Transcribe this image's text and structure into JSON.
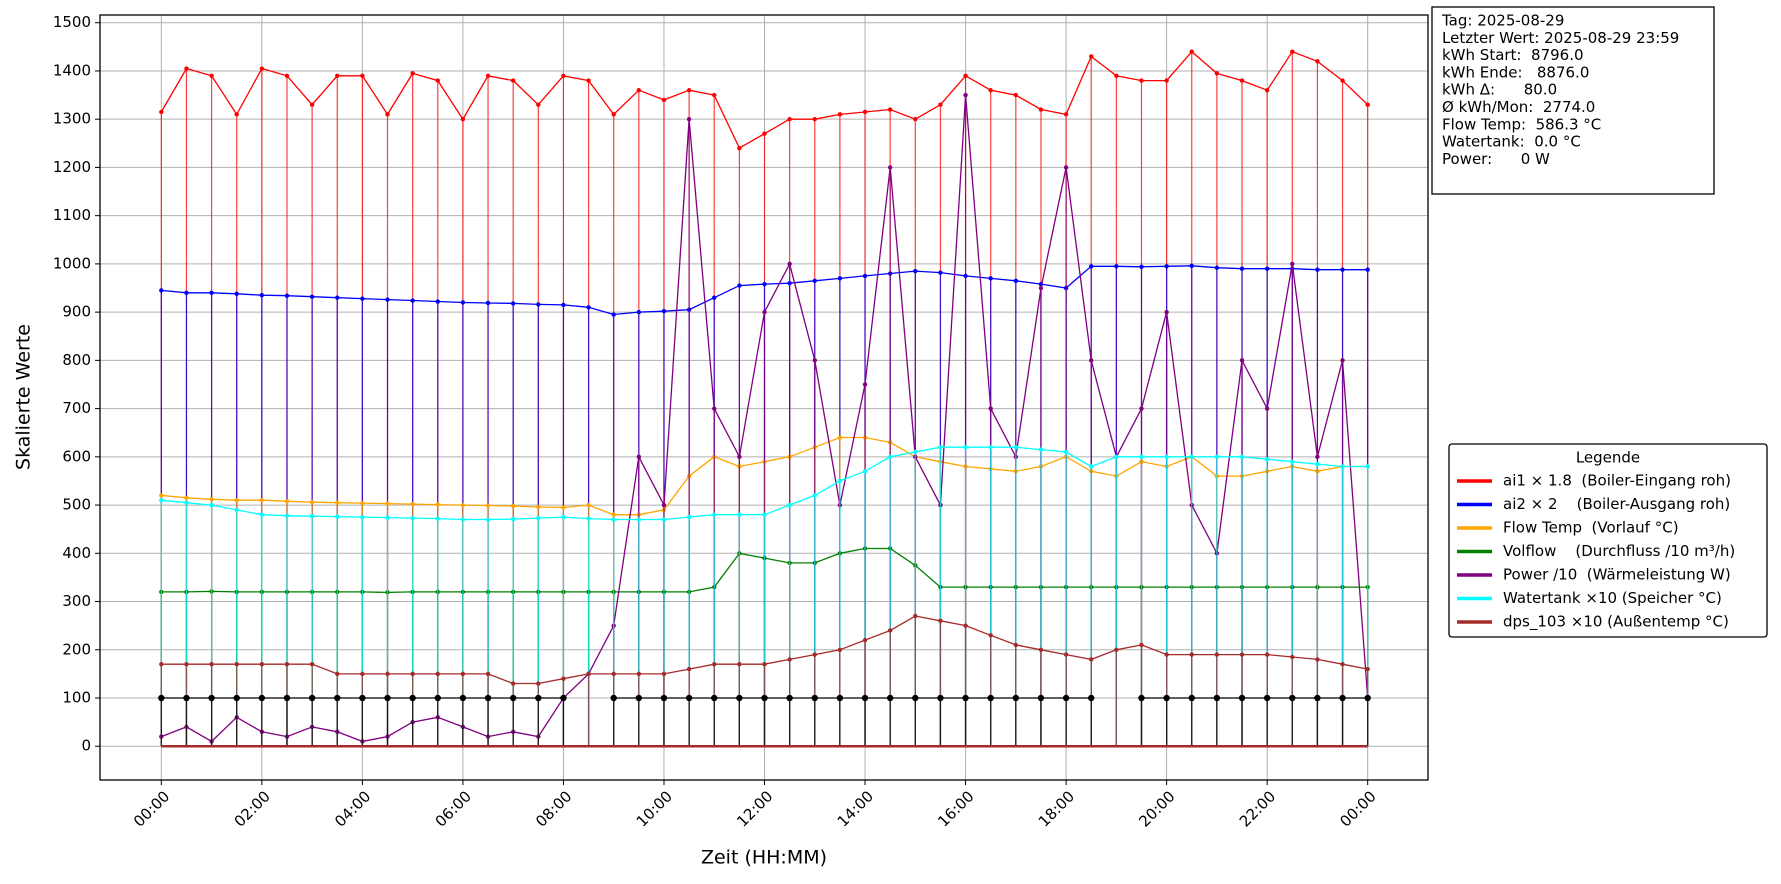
{
  "chart_data": {
    "type": "stem-line",
    "ylabel": "Skalierte Werte",
    "xlabel": "Zeit (HH:MM)",
    "xlim": [
      -1.22,
      25.2
    ],
    "ylim": [
      -70,
      1516
    ],
    "yticks": [
      0,
      100,
      200,
      300,
      400,
      500,
      600,
      700,
      800,
      900,
      1000,
      1100,
      1200,
      1300,
      1400,
      1500
    ],
    "xticks": [
      {
        "value": 0,
        "label": "00:00"
      },
      {
        "value": 2,
        "label": "02:00"
      },
      {
        "value": 4,
        "label": "04:00"
      },
      {
        "value": 6,
        "label": "06:00"
      },
      {
        "value": 8,
        "label": "08:00"
      },
      {
        "value": 10,
        "label": "10:00"
      },
      {
        "value": 12,
        "label": "12:00"
      },
      {
        "value": 14,
        "label": "14:00"
      },
      {
        "value": 16,
        "label": "16:00"
      },
      {
        "value": 18,
        "label": "18:00"
      },
      {
        "value": 20,
        "label": "20:00"
      },
      {
        "value": 22,
        "label": "22:00"
      },
      {
        "value": 24,
        "label": "00:00"
      }
    ],
    "grid": true,
    "legend_title": "Legende",
    "legend_position": "right",
    "annotations": [
      "Tag: 2025-08-29",
      "Letzter Wert: 2025-08-29 23:59",
      "kWh Start:  8796.0",
      "kWh Ende:   8876.0",
      "kWh Δ:      80.0",
      "Ø kWh/Mon:  2774.0",
      "Flow Temp:  586.3 °C",
      "Watertank:  0.0 °C",
      "Power:      0 W"
    ],
    "x": [
      0,
      0.5,
      1,
      1.5,
      2,
      2.5,
      3,
      3.5,
      4,
      4.5,
      5,
      5.5,
      6,
      6.5,
      7,
      7.5,
      8,
      8.5,
      9,
      9.5,
      10,
      10.5,
      11,
      11.5,
      12,
      12.5,
      13,
      13.5,
      14,
      14.5,
      15,
      15.5,
      16,
      16.5,
      17,
      17.5,
      18,
      18.5,
      19,
      19.5,
      20,
      20.5,
      21,
      21.5,
      22,
      22.5,
      23,
      23.5,
      24
    ],
    "series": [
      {
        "name": "ai1 × 1.8  (Boiler-Eingang roh)",
        "color": "#ff0000",
        "values": [
          1315,
          1405,
          1390,
          1310,
          1405,
          1390,
          1330,
          1390,
          1390,
          1310,
          1395,
          1380,
          1300,
          1390,
          1380,
          1330,
          1390,
          1380,
          1310,
          1360,
          1340,
          1360,
          1350,
          1240,
          1270,
          1300,
          1300,
          1310,
          1315,
          1320,
          1300,
          1330,
          1390,
          1360,
          1350,
          1320,
          1310,
          1430,
          1390,
          1380,
          1380,
          1440,
          1395,
          1380,
          1360,
          1440,
          1420,
          1380,
          1330
        ]
      },
      {
        "name": "ai2 × 2    (Boiler-Ausgang roh)",
        "color": "#0000ff",
        "values": [
          945,
          940,
          940,
          938,
          935,
          934,
          932,
          930,
          928,
          926,
          924,
          922,
          920,
          919,
          918,
          916,
          915,
          910,
          895,
          900,
          902,
          905,
          930,
          955,
          958,
          960,
          965,
          970,
          975,
          980,
          985,
          982,
          975,
          970,
          965,
          958,
          950,
          995,
          995,
          994,
          995,
          996,
          992,
          990,
          990,
          990,
          988,
          988,
          988
        ]
      },
      {
        "name": "Flow Temp  (Vorlauf °C)",
        "color": "#ffa500",
        "values": [
          520,
          515,
          512,
          510,
          510,
          508,
          506,
          505,
          504,
          503,
          502,
          501,
          500,
          499,
          498,
          496,
          495,
          500,
          480,
          480,
          490,
          560,
          600,
          580,
          590,
          600,
          620,
          640,
          640,
          630,
          600,
          590,
          580,
          575,
          570,
          580,
          600,
          570,
          560,
          590,
          580,
          600,
          560,
          560,
          570,
          580,
          570,
          580,
          580
        ]
      },
      {
        "name": "Volflow    (Durchfluss /10 m³/h)",
        "color": "#008000",
        "values": [
          320,
          320,
          321,
          320,
          320,
          320,
          320,
          320,
          320,
          319,
          320,
          320,
          320,
          320,
          320,
          320,
          320,
          320,
          320,
          320,
          320,
          320,
          330,
          400,
          390,
          380,
          380,
          400,
          410,
          410,
          375,
          330,
          330,
          330,
          330,
          330,
          330,
          330,
          330,
          330,
          330,
          330,
          330,
          330,
          330,
          330,
          330,
          330,
          330
        ]
      },
      {
        "name": "Power /10  (Wärmeleistung W)",
        "color": "#800080",
        "values": [
          20,
          40,
          10,
          60,
          30,
          20,
          40,
          30,
          10,
          20,
          50,
          60,
          40,
          20,
          30,
          20,
          100,
          150,
          250,
          600,
          500,
          1300,
          700,
          600,
          900,
          1000,
          800,
          500,
          750,
          1200,
          600,
          500,
          1350,
          700,
          600,
          950,
          1200,
          800,
          600,
          700,
          900,
          500,
          400,
          800,
          700,
          1000,
          600,
          800,
          100
        ]
      },
      {
        "name": "Watertank ×10 (Speicher °C)",
        "color": "#00ffff",
        "values": [
          510,
          505,
          500,
          490,
          480,
          478,
          477,
          476,
          475,
          474,
          473,
          472,
          470,
          470,
          471,
          473,
          475,
          472,
          470,
          470,
          470,
          475,
          480,
          480,
          480,
          500,
          520,
          550,
          570,
          600,
          610,
          620,
          620,
          620,
          620,
          615,
          610,
          580,
          600,
          600,
          600,
          600,
          600,
          600,
          595,
          590,
          585,
          580,
          580
        ]
      },
      {
        "name": "dps_103 ×10 (Außentemp °C)",
        "color": "#a52a2a",
        "values": [
          170,
          170,
          170,
          170,
          170,
          170,
          170,
          150,
          150,
          150,
          150,
          150,
          150,
          150,
          130,
          130,
          140,
          150,
          150,
          150,
          150,
          160,
          170,
          170,
          170,
          180,
          190,
          200,
          220,
          240,
          270,
          260,
          250,
          230,
          210,
          200,
          190,
          180,
          200,
          210,
          190,
          190,
          190,
          190,
          190,
          185,
          180,
          170,
          160
        ]
      },
      {
        "color": "#000000",
        "values": [
          100,
          100,
          100,
          100,
          100,
          100,
          100,
          100,
          100,
          100,
          100,
          100,
          100,
          100,
          100,
          100,
          100,
          null,
          100,
          100,
          100,
          100,
          100,
          100,
          100,
          100,
          100,
          100,
          100,
          100,
          100,
          100,
          100,
          100,
          100,
          100,
          100,
          100,
          null,
          100,
          100,
          100,
          100,
          100,
          100,
          100,
          100,
          100,
          100
        ]
      }
    ]
  }
}
